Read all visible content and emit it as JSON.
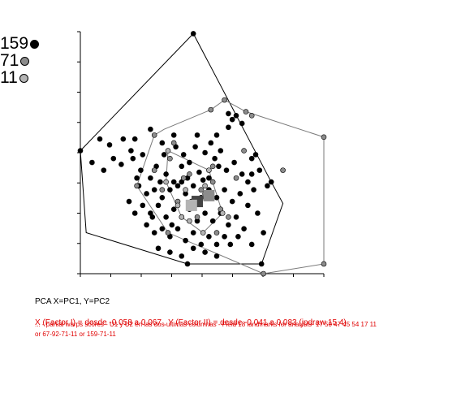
{
  "caption": "PCA X=PC1, Y=PC2",
  "red_header": "X (Factor I) = desde -0.058 a 0.067 , Y (Factor II) = desde -0.041 a 0.083 (jpdraw 15.4)",
  "red_notes": "... - partial warps scores - U1 y U2 en las dos ultimas columnas - Field 18 landmarks for analysis- 17 50 47 45 54 17 11 or 67-92-71-11 or 159-71-11",
  "chart_data": {
    "type": "scatter",
    "title": "",
    "xlabel": "PC1",
    "ylabel": "PC2",
    "xlim": [
      -0.058,
      0.067
    ],
    "ylim": [
      -0.041,
      0.083
    ],
    "grid": false,
    "legend_position": "top-left",
    "series": [
      {
        "name": "159",
        "color": "#000000",
        "hull": [
          [
            -0.058,
            0.022
          ],
          [
            0.0,
            0.082
          ],
          [
            0.04,
            0.006
          ],
          [
            0.046,
            -0.005
          ],
          [
            0.035,
            -0.036
          ],
          [
            -0.003,
            -0.036
          ],
          [
            -0.055,
            -0.02
          ]
        ],
        "centroid": [
          0.002,
          -0.004
        ],
        "points": [
          [
            -0.058,
            0.022
          ],
          [
            0.0,
            0.082
          ],
          [
            0.04,
            0.006
          ],
          [
            0.035,
            -0.036
          ],
          [
            -0.003,
            -0.036
          ],
          [
            -0.048,
            0.028
          ],
          [
            -0.043,
            0.025
          ],
          [
            -0.036,
            0.028
          ],
          [
            -0.03,
            0.028
          ],
          [
            -0.022,
            0.033
          ],
          [
            -0.016,
            0.026
          ],
          [
            -0.01,
            0.03
          ],
          [
            -0.005,
            0.02
          ],
          [
            0.001,
            0.024
          ],
          [
            0.006,
            0.021
          ],
          [
            0.012,
            0.03
          ],
          [
            0.018,
            0.034
          ],
          [
            0.022,
            0.04
          ],
          [
            0.018,
            0.041
          ],
          [
            0.02,
            0.038
          ],
          [
            0.025,
            0.036
          ],
          [
            0.03,
            0.018
          ],
          [
            0.032,
            0.02
          ],
          [
            0.034,
            0.012
          ],
          [
            0.03,
            0.01
          ],
          [
            0.028,
            0.006
          ],
          [
            0.031,
            0.002
          ],
          [
            -0.052,
            0.016
          ],
          [
            -0.046,
            0.012
          ],
          [
            -0.041,
            0.018
          ],
          [
            -0.037,
            0.015
          ],
          [
            -0.031,
            0.018
          ],
          [
            -0.027,
            0.012
          ],
          [
            -0.022,
            0.008
          ],
          [
            -0.019,
            0.014
          ],
          [
            -0.014,
            0.01
          ],
          [
            -0.01,
            0.006
          ],
          [
            -0.006,
            0.014
          ],
          [
            -0.002,
            0.016
          ],
          [
            0.003,
            0.011
          ],
          [
            0.008,
            0.008
          ],
          [
            0.013,
            0.014
          ],
          [
            0.017,
            0.012
          ],
          [
            0.021,
            0.016
          ],
          [
            0.025,
            0.01
          ],
          [
            -0.028,
            0.004
          ],
          [
            -0.024,
            0.0
          ],
          [
            -0.02,
            0.002
          ],
          [
            -0.016,
            -0.002
          ],
          [
            -0.012,
            0.002
          ],
          [
            -0.008,
            0.004
          ],
          [
            -0.004,
            0.0
          ],
          [
            0.0,
            0.004
          ],
          [
            0.004,
            -0.002
          ],
          [
            0.008,
            0.002
          ],
          [
            0.012,
            -0.002
          ],
          [
            0.016,
            0.002
          ],
          [
            0.02,
            -0.004
          ],
          [
            0.024,
            0.0
          ],
          [
            0.028,
            -0.006
          ],
          [
            -0.026,
            -0.006
          ],
          [
            -0.022,
            -0.01
          ],
          [
            -0.018,
            -0.006
          ],
          [
            -0.014,
            -0.012
          ],
          [
            -0.01,
            -0.008
          ],
          [
            -0.006,
            -0.012
          ],
          [
            -0.002,
            -0.008
          ],
          [
            0.002,
            -0.014
          ],
          [
            0.006,
            -0.01
          ],
          [
            0.01,
            -0.014
          ],
          [
            0.014,
            -0.01
          ],
          [
            0.018,
            -0.016
          ],
          [
            0.022,
            -0.012
          ],
          [
            0.026,
            -0.018
          ],
          [
            -0.024,
            -0.016
          ],
          [
            -0.02,
            -0.02
          ],
          [
            -0.016,
            -0.018
          ],
          [
            -0.012,
            -0.022
          ],
          [
            -0.008,
            -0.018
          ],
          [
            -0.004,
            -0.024
          ],
          [
            0.0,
            -0.02
          ],
          [
            0.004,
            -0.026
          ],
          [
            0.008,
            -0.022
          ],
          [
            0.012,
            -0.026
          ],
          [
            0.016,
            -0.022
          ],
          [
            -0.018,
            -0.028
          ],
          [
            -0.012,
            -0.03
          ],
          [
            -0.006,
            -0.032
          ],
          [
            0.0,
            -0.028
          ],
          [
            0.006,
            -0.03
          ],
          [
            0.012,
            -0.032
          ],
          [
            -0.03,
            -0.01
          ],
          [
            -0.033,
            -0.004
          ],
          [
            -0.029,
            0.008
          ],
          [
            0.033,
            -0.01
          ],
          [
            0.036,
            -0.02
          ],
          [
            0.03,
            -0.026
          ],
          [
            0.038,
            0.004
          ],
          [
            -0.015,
            0.02
          ],
          [
            -0.009,
            0.024
          ],
          [
            0.009,
            0.026
          ],
          [
            0.014,
            0.022
          ],
          [
            -0.032,
            0.022
          ],
          [
            -0.026,
            0.02
          ],
          [
            0.002,
            0.03
          ],
          [
            -0.001,
            -0.004
          ],
          [
            -0.006,
            0.006
          ],
          [
            0.005,
            0.007
          ],
          [
            -0.011,
            -0.016
          ],
          [
            0.019,
            -0.026
          ],
          [
            0.023,
            -0.022
          ],
          [
            -0.021,
            -0.012
          ],
          [
            0.011,
            0.018
          ],
          [
            -0.003,
            0.008
          ],
          [
            -0.017,
            0.006
          ]
        ]
      },
      {
        "name": "71",
        "color": "#8c8c8c",
        "hull": [
          [
            0.016,
            0.048
          ],
          [
            0.027,
            0.042
          ],
          [
            0.067,
            0.029
          ],
          [
            0.067,
            -0.036
          ],
          [
            0.036,
            -0.041
          ],
          [
            -0.013,
            -0.02
          ],
          [
            -0.029,
            0.004
          ],
          [
            -0.02,
            0.03
          ],
          [
            -0.015,
            0.033
          ],
          [
            0.009,
            0.043
          ]
        ],
        "centroid": [
          0.008,
          -0.001
        ],
        "points": [
          [
            0.016,
            0.048
          ],
          [
            0.027,
            0.042
          ],
          [
            0.067,
            0.029
          ],
          [
            0.067,
            -0.036
          ],
          [
            0.036,
            -0.041
          ],
          [
            -0.013,
            -0.02
          ],
          [
            -0.029,
            0.004
          ],
          [
            -0.02,
            0.03
          ],
          [
            0.009,
            0.043
          ],
          [
            0.046,
            0.012
          ],
          [
            -0.012,
            0.018
          ],
          [
            -0.02,
            0.012
          ],
          [
            -0.005,
            0.008
          ],
          [
            0.004,
            0.002
          ],
          [
            0.01,
            0.006
          ],
          [
            -0.008,
            -0.004
          ],
          [
            0.014,
            -0.008
          ],
          [
            0.022,
            0.008
          ],
          [
            -0.016,
            0.002
          ],
          [
            0.002,
            -0.012
          ],
          [
            0.018,
            -0.012
          ],
          [
            0.01,
            0.014
          ],
          [
            -0.002,
            0.01
          ],
          [
            0.026,
            0.022
          ],
          [
            0.03,
            0.04
          ],
          [
            0.012,
            -0.02
          ],
          [
            -0.01,
            0.026
          ],
          [
            0.006,
            0.0
          ]
        ]
      },
      {
        "name": "11",
        "color": "#b4b4b4",
        "hull": [
          [
            -0.013,
            0.022
          ],
          [
            0.008,
            0.012
          ],
          [
            0.015,
            -0.01
          ],
          [
            0.005,
            -0.02
          ],
          [
            -0.006,
            -0.012
          ],
          [
            -0.014,
            0.006
          ]
        ],
        "centroid": [
          -0.001,
          -0.006
        ],
        "points": [
          [
            -0.013,
            0.022
          ],
          [
            0.008,
            0.012
          ],
          [
            0.015,
            -0.01
          ],
          [
            0.005,
            -0.02
          ],
          [
            -0.006,
            -0.012
          ],
          [
            -0.014,
            0.006
          ],
          [
            -0.004,
            0.002
          ],
          [
            0.002,
            -0.004
          ],
          [
            -0.008,
            -0.006
          ],
          [
            0.006,
            0.004
          ],
          [
            -0.002,
            -0.014
          ]
        ]
      }
    ]
  }
}
